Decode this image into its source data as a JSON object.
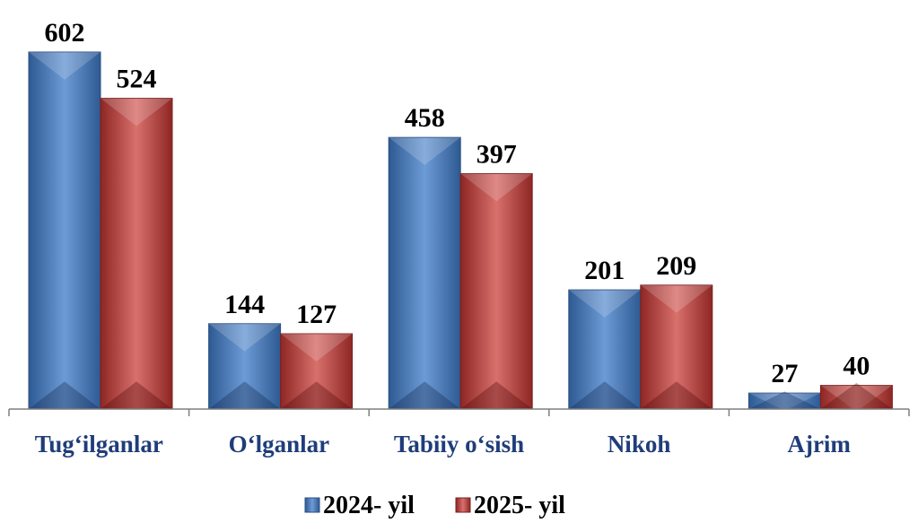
{
  "chart_data": {
    "type": "bar",
    "categories": [
      "Tug‘ilganlar",
      "O‘lganlar",
      "Tabiiy o‘sish",
      "Nikoh",
      "Ajrim"
    ],
    "series": [
      {
        "name": "2024- yil",
        "values": [
          602,
          144,
          458,
          201,
          27
        ],
        "color": "#4f81bd"
      },
      {
        "name": "2025- yil",
        "values": [
          524,
          127,
          397,
          209,
          40
        ],
        "color": "#c0504d"
      }
    ],
    "ylim": [
      0,
      602
    ],
    "grid": false,
    "legend": "bottom",
    "data_labels": true
  }
}
